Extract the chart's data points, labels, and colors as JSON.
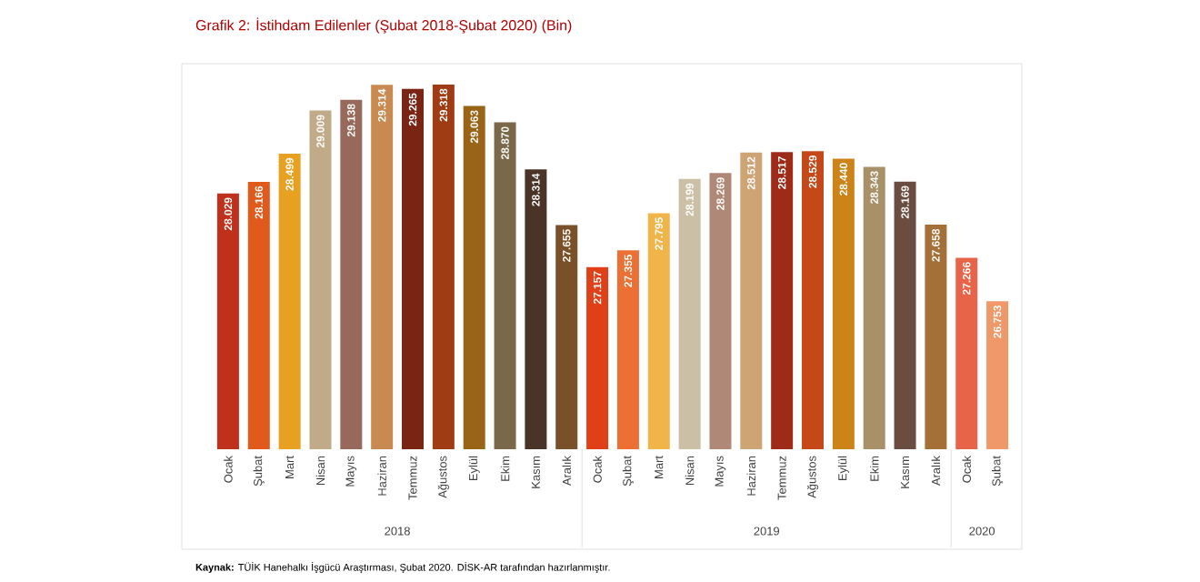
{
  "chart_data": {
    "type": "bar",
    "title": "Grafik 2: İstihdam Edilenler (Şubat 2018-Şubat 2020) (Bin)",
    "categories": [
      "Ocak",
      "Şubat",
      "Mart",
      "Nisan",
      "Mayıs",
      "Haziran",
      "Temmuz",
      "Ağustos",
      "Eylül",
      "Ekim",
      "Kasım",
      "Aralık",
      "Ocak",
      "Şubat",
      "Mart",
      "Nisan",
      "Mayıs",
      "Haziran",
      "Temmuz",
      "Ağustos",
      "Eylül",
      "Ekim",
      "Kasım",
      "Aralık",
      "Ocak",
      "Şubat"
    ],
    "values": [
      28029,
      28166,
      28499,
      29009,
      29138,
      29314,
      29265,
      29318,
      29063,
      28870,
      28314,
      27655,
      27157,
      27355,
      27795,
      28199,
      28269,
      28512,
      28517,
      28529,
      28440,
      28343,
      28169,
      27658,
      27266,
      26753
    ],
    "value_labels": [
      "28.029",
      "28.166",
      "28.499",
      "29.009",
      "29.138",
      "29.314",
      "29.265",
      "29.318",
      "29.063",
      "28.870",
      "28.314",
      "27.655",
      "27.157",
      "27.355",
      "27.795",
      "28.199",
      "28.269",
      "28.512",
      "28.517",
      "28.529",
      "28.440",
      "28.343",
      "28.169",
      "27.658",
      "27.266",
      "26.753"
    ],
    "colors": [
      "#c0311c",
      "#e05a1c",
      "#e8a020",
      "#c0aa88",
      "#96695a",
      "#c88a50",
      "#7a2414",
      "#a03c14",
      "#9a6418",
      "#7a6848",
      "#4a3428",
      "#7a5028",
      "#e04018",
      "#ec7034",
      "#f0b448",
      "#cbbfa5",
      "#b08878",
      "#cfa474",
      "#9e2a18",
      "#c44818",
      "#cc8418",
      "#a89068",
      "#6a4c40",
      "#a47038",
      "#e86448",
      "#f09868"
    ],
    "ylim": [
      25000,
      29500
    ],
    "annotations": [
      "2018",
      "2019",
      "2020",
      "**Kaynak:** TÜİK Hanehalkı İşgücü Araştırması, Şubat 2020. DİSK-AR tarafından hazırlanmıştır."
    ]
  }
}
